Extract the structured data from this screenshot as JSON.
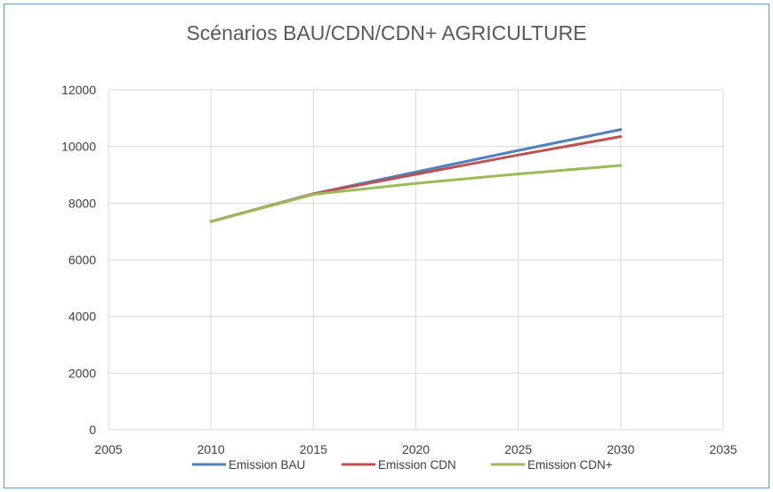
{
  "chart_data": {
    "type": "scatter",
    "title": "Scénarios BAU/CDN/CDN+ AGRICULTURE",
    "xlim": [
      2005,
      2035
    ],
    "ylim": [
      0,
      12000
    ],
    "xticks": [
      2005,
      2010,
      2015,
      2020,
      2025,
      2030,
      2035
    ],
    "yticks": [
      0,
      2000,
      4000,
      6000,
      8000,
      10000,
      12000
    ],
    "grid": true,
    "legend": "bottom",
    "series": [
      {
        "name": "Emission BAU",
        "color": "#4f81bd",
        "points": [
          [
            2010,
            7350
          ],
          [
            2015,
            8330
          ],
          [
            2020,
            9100
          ],
          [
            2025,
            9860
          ],
          [
            2030,
            10600
          ]
        ]
      },
      {
        "name": "Emission CDN",
        "color": "#c0504d",
        "points": [
          [
            2010,
            7350
          ],
          [
            2015,
            8330
          ],
          [
            2020,
            9020
          ],
          [
            2025,
            9700
          ],
          [
            2030,
            10350
          ]
        ]
      },
      {
        "name": "Emission CDN+",
        "color": "#9bbb59",
        "points": [
          [
            2010,
            7350
          ],
          [
            2015,
            8310
          ],
          [
            2020,
            8700
          ],
          [
            2025,
            9030
          ],
          [
            2030,
            9330
          ]
        ]
      }
    ]
  }
}
